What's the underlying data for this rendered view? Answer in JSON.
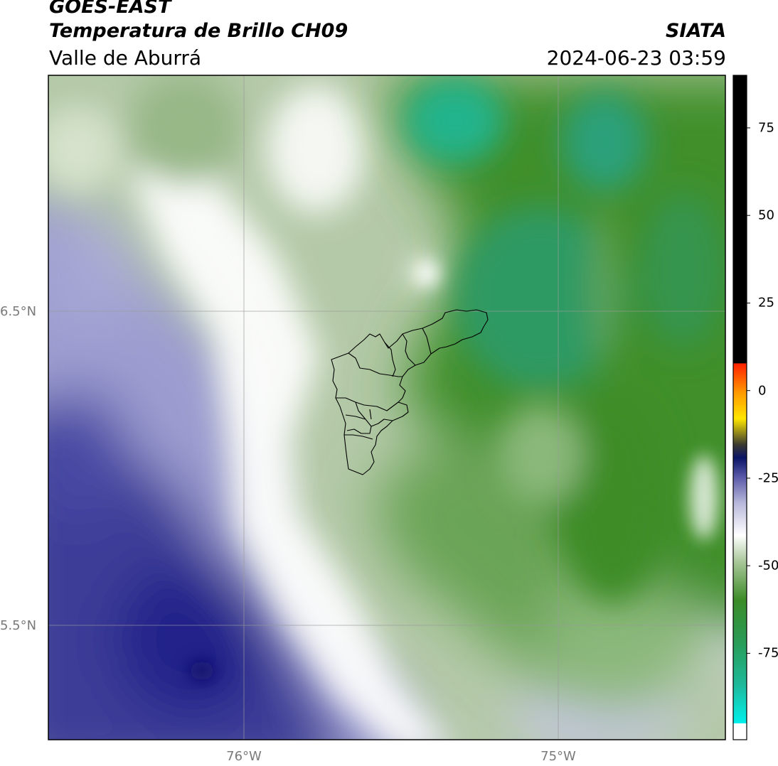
{
  "header": {
    "satellite": "GOES-EAST",
    "product": "Temperatura de Brillo CH09",
    "organization": "SIATA",
    "region": "Valle de Aburrá",
    "datetime": "2024-06-23 03:59"
  },
  "map": {
    "lat_labels": [
      "6.5°N",
      "5.5°N"
    ],
    "lon_labels": [
      "76°W",
      "75°W"
    ],
    "gridlines": true,
    "overlay": "Valle de Aburrá municipal boundaries"
  },
  "colorbar": {
    "ticks": [
      "75",
      "50",
      "25",
      "0",
      "-25",
      "-50",
      "-75"
    ],
    "tick_values": [
      75,
      50,
      25,
      0,
      -25,
      -50,
      -75
    ],
    "range": [
      -95,
      90
    ],
    "colors": {
      "warm_black": "#000000",
      "red": "#ff2000",
      "orange": "#ff8c00",
      "yellow": "#ffe600",
      "dark_blue": "#0a1466",
      "lavender": "#b8b8dc",
      "white": "#ffffff",
      "green": "#3c8c28",
      "teal": "#1eb99a",
      "cyan": "#00e5e0"
    }
  }
}
